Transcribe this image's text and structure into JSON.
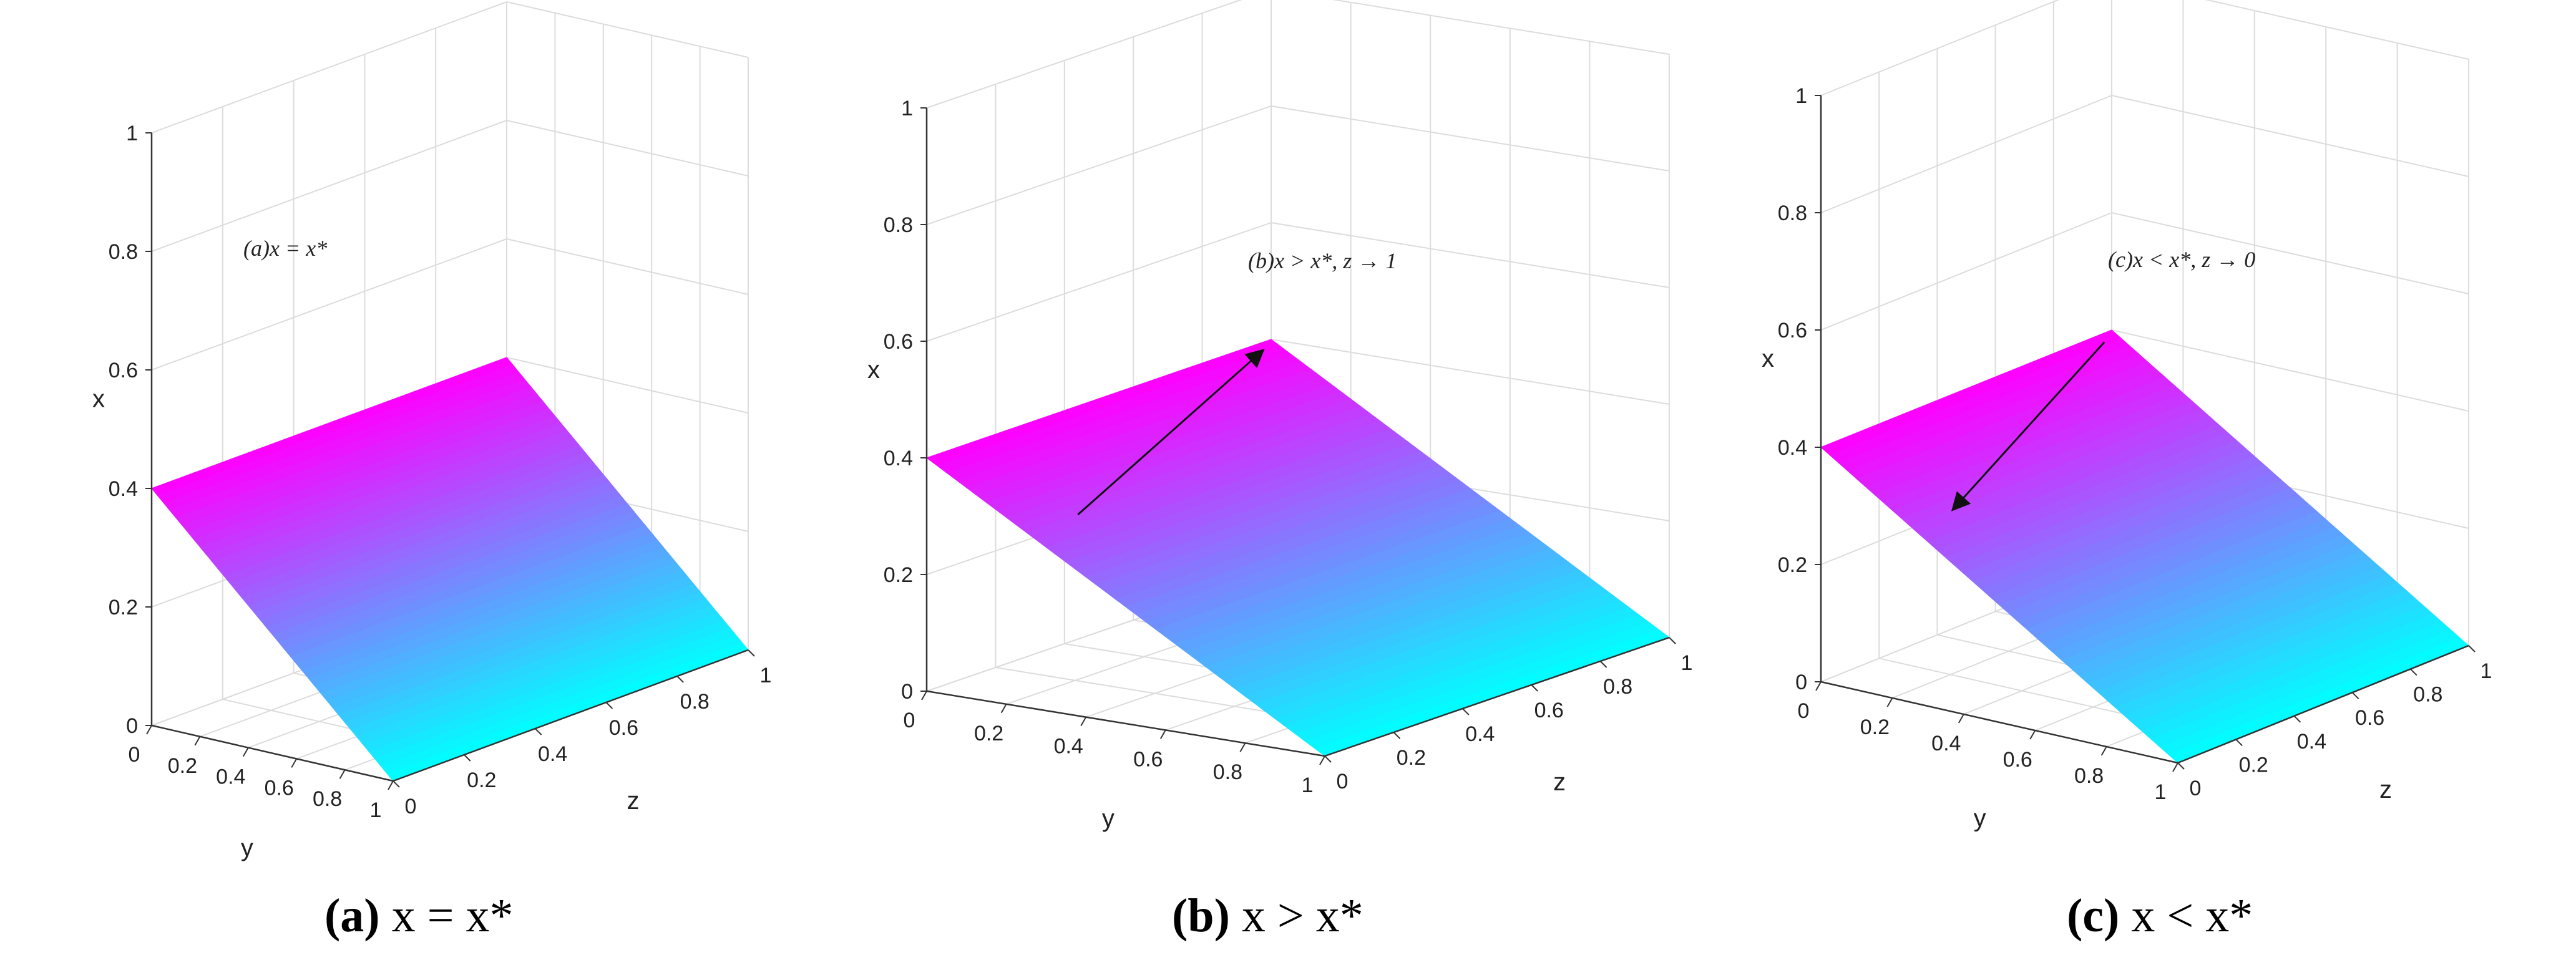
{
  "chart_data": [
    {
      "type": "surface3d",
      "panel": "a",
      "annotation": "(a)x = x*",
      "xlabel": "y",
      "ylabel": "z",
      "zlabel": "x",
      "xlim": [
        0,
        1
      ],
      "ylim": [
        0,
        1
      ],
      "zlim": [
        0,
        1
      ],
      "x_ticks": [
        "0",
        "0.2",
        "0.4",
        "0.6",
        "0.8",
        "1"
      ],
      "y_ticks": [
        "0",
        "0.2",
        "0.4",
        "0.6",
        "0.8",
        "1"
      ],
      "z_ticks": [
        "0",
        "0.2",
        "0.4",
        "0.6",
        "0.8",
        "1"
      ],
      "surface": {
        "x_at_y0_z0": 0.4,
        "x_at_y1_z0": 0,
        "x_at_y0_z1": 0.4,
        "x_at_y1_z1": 0
      },
      "colormap": [
        "#ff00ff",
        "#00ffff"
      ],
      "grid": true,
      "arrow": null
    },
    {
      "type": "surface3d",
      "panel": "b",
      "annotation": "(b)x > x*, z → 1",
      "xlabel": "y",
      "ylabel": "z",
      "zlabel": "x",
      "xlim": [
        0,
        1
      ],
      "ylim": [
        0,
        1
      ],
      "zlim": [
        0,
        1
      ],
      "x_ticks": [
        "0",
        "0.2",
        "0.4",
        "0.6",
        "0.8",
        "1"
      ],
      "y_ticks": [
        "0",
        "0.2",
        "0.4",
        "0.6",
        "0.8",
        "1"
      ],
      "z_ticks": [
        "0",
        "0.2",
        "0.4",
        "0.6",
        "0.8",
        "1"
      ],
      "surface": {
        "x_at_y0_z0": 0.4,
        "x_at_y1_z0": 0,
        "x_at_y0_z1": 0.4,
        "x_at_y1_z1": 0
      },
      "colormap": [
        "#ff00ff",
        "#00ffff"
      ],
      "grid": true,
      "arrow": "toward z = 1"
    },
    {
      "type": "surface3d",
      "panel": "c",
      "annotation": "(c)x < x*, z → 0",
      "xlabel": "y",
      "ylabel": "z",
      "zlabel": "x",
      "xlim": [
        0,
        1
      ],
      "ylim": [
        0,
        1
      ],
      "zlim": [
        0,
        1
      ],
      "x_ticks": [
        "0",
        "0.2",
        "0.4",
        "0.6",
        "0.8",
        "1"
      ],
      "y_ticks": [
        "0",
        "0.2",
        "0.4",
        "0.6",
        "0.8",
        "1"
      ],
      "z_ticks": [
        "0",
        "0.2",
        "0.4",
        "0.6",
        "0.8",
        "1"
      ],
      "surface": {
        "x_at_y0_z0": 0.4,
        "x_at_y1_z0": 0,
        "x_at_y0_z1": 0.4,
        "x_at_y1_z1": 0
      },
      "colormap": [
        "#ff00ff",
        "#00ffff"
      ],
      "grid": true,
      "arrow": "toward z = 0"
    }
  ],
  "captions": [
    {
      "label": "(a)",
      "text": " x = x*"
    },
    {
      "label": "(b)",
      "text": " x > x*"
    },
    {
      "label": "(c)",
      "text": " x < x*"
    }
  ]
}
